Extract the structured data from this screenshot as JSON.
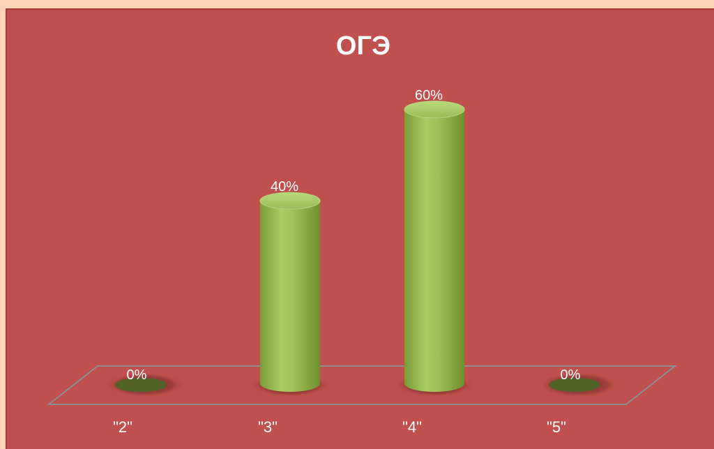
{
  "chart_data": {
    "type": "bar",
    "style": "3d-cylinder",
    "title": "ОГЭ",
    "categories": [
      "\"2\"",
      "\"3\"",
      "\"4\"",
      "\"5\""
    ],
    "series": [
      {
        "values": [
          0,
          40,
          60,
          0
        ],
        "color": "#9bbb59"
      }
    ],
    "data_labels": [
      "0%",
      "40%",
      "60%",
      "0%"
    ],
    "ylim": [
      0,
      65
    ],
    "grid": false,
    "legend": "none",
    "background_color": "#c0504d",
    "page_background_color": "#fbd5b5",
    "floor_color": "#8e8e8e"
  }
}
